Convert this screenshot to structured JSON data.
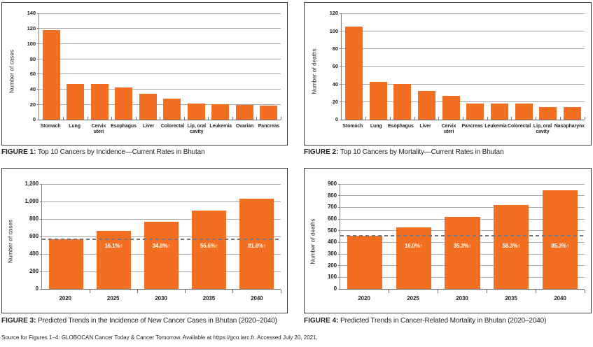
{
  "page": {
    "source_note": "Source for Figures 1–4: GLOBOCAN Cancer Today & Cancer Tomorrow. Available at https://gco.iarc.fr. Accessed July 20, 2021."
  },
  "figures": [
    {
      "caption_label": "FIGURE 1:",
      "caption_text": "Top 10 Cancers by Incidence—Current Rates in Bhutan"
    },
    {
      "caption_label": "FIGURE 2:",
      "caption_text": "Top 10 Cancers by Mortality—Current Rates in Bhutan"
    },
    {
      "caption_label": "FIGURE 3:",
      "caption_text": "Predicted Trends in the Incidence of New Cancer Cases in Bhutan (2020–2040)"
    },
    {
      "caption_label": "FIGURE 4:",
      "caption_text": "Predicted Trends in Cancer-Related Mortality in Bhutan (2020–2040)"
    }
  ],
  "colors": {
    "bar_orange": "#F26F21",
    "gridline": "#A7A9AC",
    "axis": "#6D6E71",
    "dashed_line": "#77787B",
    "text": "#231F20",
    "bar_label_text": "#FFFFFF"
  },
  "chart_data": [
    {
      "id": "figure-1",
      "type": "bar",
      "title": "FIGURE 1: Top 10 Cancers by Incidence—Current Rates in Bhutan",
      "categories": [
        "Stomach",
        "Lung",
        "Cervix\nuteri",
        "Esophagus",
        "Liver",
        "Colorectal",
        "Lip, oral\ncavity",
        "Leukemia",
        "Ovarian",
        "Pancreas"
      ],
      "values": [
        118,
        47,
        47,
        42,
        34,
        28,
        21,
        20,
        19,
        18
      ],
      "xlabel": "",
      "ylabel": "Number of cases",
      "ylim": [
        0,
        140
      ],
      "yticks": [
        0,
        20,
        40,
        60,
        80,
        100,
        120,
        140
      ],
      "grid": true,
      "legend": "none"
    },
    {
      "id": "figure-2",
      "type": "bar",
      "title": "FIGURE 2: Top 10 Cancers by Mortality—Current Rates in Bhutan",
      "categories": [
        "Stomach",
        "Lung",
        "Esophagus",
        "Liver",
        "Cervix\nuteri",
        "Pancreas",
        "Leukemia",
        "Colorectal",
        "Lip, oral\ncavity",
        "Nasopharynx"
      ],
      "values": [
        105,
        43,
        40,
        32,
        27,
        18,
        18,
        18,
        14,
        14
      ],
      "xlabel": "",
      "ylabel": "Number of deaths",
      "ylim": [
        0,
        120
      ],
      "yticks": [
        0,
        20,
        40,
        60,
        80,
        100,
        120
      ],
      "grid": true,
      "legend": "none"
    },
    {
      "id": "figure-3",
      "type": "bar",
      "title": "FIGURE 3: Predicted Trends in the Incidence of New Cancer Cases in Bhutan (2020–2040)",
      "categories": [
        "2020",
        "2025",
        "2030",
        "2035",
        "2040"
      ],
      "values": [
        570,
        662,
        768,
        893,
        1035
      ],
      "bar_labels": [
        "",
        "16.1%↑",
        "34.8%↑",
        "56.6%↑",
        "81.6%↑"
      ],
      "dashed_line_y": 570,
      "xlabel": "",
      "ylabel": "Number of cases",
      "ylim": [
        0,
        1200
      ],
      "yticks": [
        0,
        200,
        400,
        600,
        800,
        1000,
        1200
      ],
      "grid": true,
      "legend": "none"
    },
    {
      "id": "figure-4",
      "type": "bar",
      "title": "FIGURE 4: Predicted Trends in Cancer-Related Mortality in Bhutan (2020–2040)",
      "categories": [
        "2020",
        "2025",
        "2030",
        "2035",
        "2040"
      ],
      "values": [
        457,
        530,
        618,
        723,
        847
      ],
      "bar_labels": [
        "",
        "16.0%↑",
        "35.3%↑",
        "58.3%↑",
        "85.3%↑"
      ],
      "dashed_line_y": 457,
      "xlabel": "",
      "ylabel": "Number of deaths",
      "ylim": [
        0,
        900
      ],
      "yticks": [
        0,
        100,
        200,
        300,
        400,
        500,
        600,
        700,
        800,
        900
      ],
      "grid": true,
      "legend": "none"
    }
  ]
}
